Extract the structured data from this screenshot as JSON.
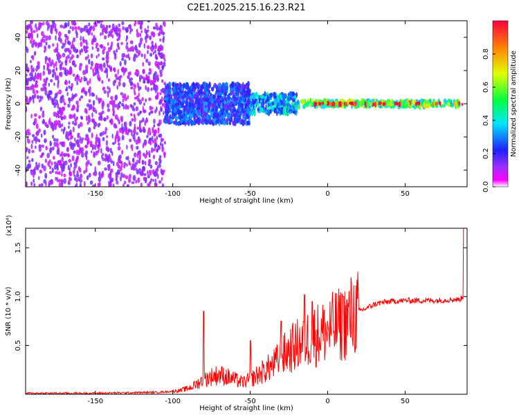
{
  "chart_data": [
    {
      "type": "heatmap",
      "title": "C2E1.2025.215.16.23.R21",
      "xlabel": "Height of straight line (km)",
      "ylabel": "Frequency (Hz)",
      "colorbar_label": "Normalized spectral amplitude",
      "xlim": [
        -195,
        90
      ],
      "ylim": [
        -50,
        50
      ],
      "xticks": [
        -150,
        -100,
        -50,
        0,
        50
      ],
      "xtick_labels": [
        "-150",
        "-100",
        "-50",
        "0",
        "50"
      ],
      "yticks": [
        -40,
        -20,
        0,
        20,
        40
      ],
      "ytick_labels": [
        "-40",
        "-20",
        "0",
        "20",
        "40"
      ],
      "colorbar_range": [
        0,
        1
      ],
      "colorbar_ticks": [
        0.0,
        0.2,
        0.4,
        0.6,
        0.8
      ],
      "colorbar_tick_labels": [
        "0.0",
        "0.2",
        "0.4",
        "0.6",
        "0.8"
      ],
      "colorscale": [
        "#ffffff",
        "#ff00ff",
        "#7f00ff",
        "#0000ff",
        "#00ffff",
        "#00ff00",
        "#ffff00",
        "#ff7f00",
        "#ff0000"
      ],
      "regions": [
        {
          "x_range": [
            -195,
            -105
          ],
          "freq_range": [
            -50,
            50
          ],
          "amplitude": 0.12,
          "note": "scattered noise"
        },
        {
          "x_range": [
            -105,
            -50
          ],
          "freq_range": [
            -12,
            12
          ],
          "amplitude": 0.25
        },
        {
          "x_range": [
            -50,
            -20
          ],
          "freq_range": [
            -6,
            6
          ],
          "amplitude": 0.35
        },
        {
          "x_range": [
            -20,
            85
          ],
          "freq_range": [
            -2,
            2
          ],
          "amplitude": 0.55
        },
        {
          "x_range": [
            -10,
            90
          ],
          "freq_range": [
            -0.5,
            0.5
          ],
          "amplitude": 0.95
        }
      ]
    },
    {
      "type": "line",
      "title": "",
      "xlabel": "Height of straight line (km)",
      "ylabel": "SNR (10 * v/v)",
      "y_multiplier": "(x10⁴)",
      "xlim": [
        -195,
        90
      ],
      "ylim": [
        0,
        1.7
      ],
      "xticks": [
        -150,
        -100,
        -50,
        0,
        50
      ],
      "xtick_labels": [
        "-150",
        "-100",
        "-50",
        "0",
        "50"
      ],
      "yticks": [
        0.5,
        1.0,
        1.5
      ],
      "ytick_labels": [
        "0.5",
        "1.0",
        "1.5"
      ],
      "series": [
        {
          "color": "#ff0000",
          "x": [
            -195,
            -170,
            -150,
            -130,
            -110,
            -100,
            -95,
            -90,
            -85,
            -80,
            -75,
            -70,
            -65,
            -60,
            -55,
            -50,
            -45,
            -40,
            -35,
            -30,
            -25,
            -20,
            -15,
            -10,
            -5,
            0,
            5,
            10,
            15,
            20,
            25,
            30,
            35,
            40,
            50,
            60,
            70,
            80,
            85,
            88
          ],
          "y": [
            0.01,
            0.01,
            0.01,
            0.015,
            0.02,
            0.03,
            0.04,
            0.06,
            0.1,
            0.15,
            0.18,
            0.2,
            0.18,
            0.15,
            0.12,
            0.15,
            0.2,
            0.25,
            0.3,
            0.38,
            0.45,
            0.5,
            0.55,
            0.6,
            0.62,
            0.65,
            0.7,
            0.72,
            0.8,
            0.85,
            0.88,
            0.92,
            0.94,
            0.95,
            0.96,
            0.96,
            0.96,
            0.97,
            0.97,
            1.0
          ]
        }
      ],
      "spikes": [
        {
          "x": -80,
          "y": 0.85
        },
        {
          "x": -50,
          "y": 0.55
        },
        {
          "x": -30,
          "y": 0.75
        },
        {
          "x": -15,
          "y": 1.02
        },
        {
          "x": -10,
          "y": 0.95
        },
        {
          "x": 10,
          "y": 1.0
        },
        {
          "x": 88,
          "y": 1.7
        }
      ]
    }
  ]
}
